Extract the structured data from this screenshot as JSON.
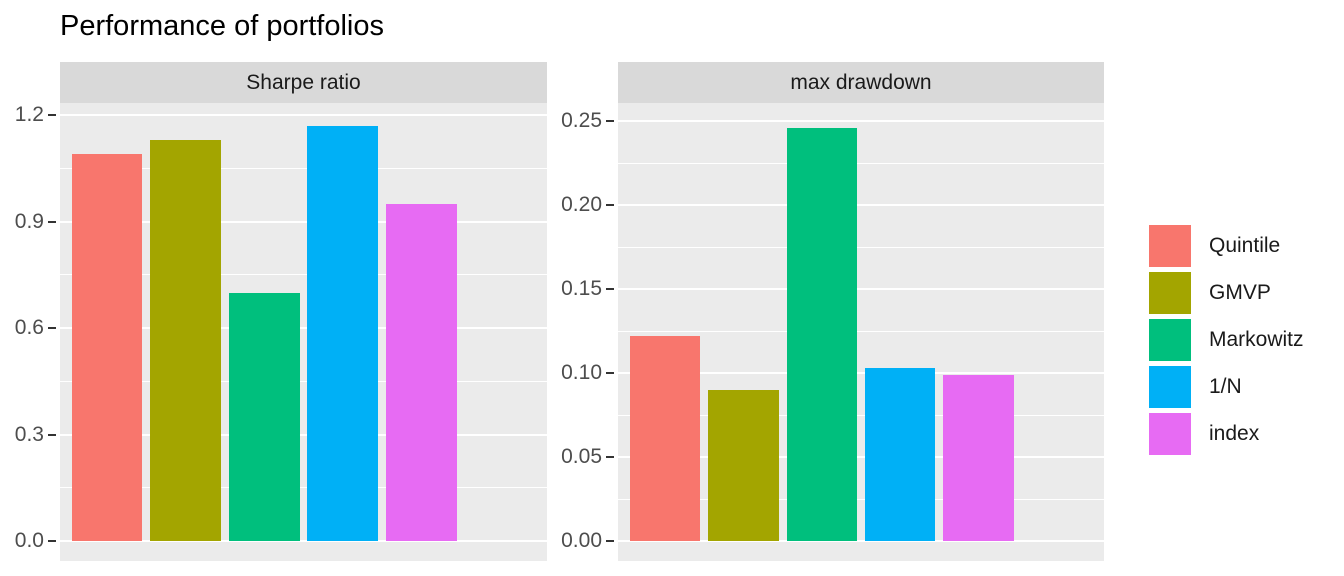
{
  "title": "Performance of portfolios",
  "chart_data": {
    "type": "bar",
    "title": "Performance of portfolios",
    "categories": [
      "Quintile",
      "GMVP",
      "Markowitz",
      "1/N",
      "index"
    ],
    "palette": [
      "#F8766D",
      "#A3A500",
      "#00BF7D",
      "#00B0F6",
      "#E76BF3"
    ],
    "facets": [
      {
        "label": "Sharpe ratio",
        "values": [
          1.09,
          1.13,
          0.7,
          1.17,
          0.95
        ],
        "yticks": [
          0.0,
          0.3,
          0.6,
          0.9,
          1.2
        ],
        "ytick_labels": [
          "0.0",
          "0.3",
          "0.6",
          "0.9",
          "1.2"
        ],
        "ylim": [
          -0.0563,
          1.2338
        ]
      },
      {
        "label": "max drawdown",
        "values": [
          0.122,
          0.09,
          0.246,
          0.103,
          0.099
        ],
        "yticks": [
          0.0,
          0.05,
          0.1,
          0.15,
          0.2,
          0.25
        ],
        "ytick_labels": [
          "0.00",
          "0.05",
          "0.10",
          "0.15",
          "0.20",
          "0.25"
        ],
        "ylim": [
          -0.0119,
          0.261
        ]
      }
    ],
    "legend": {
      "position": "right",
      "items": [
        "Quintile",
        "GMVP",
        "Markowitz",
        "1/N",
        "index"
      ]
    },
    "grid": true,
    "bar_rel_width": 0.9,
    "colors": {
      "panel_bg": "#EBEBEB",
      "strip_bg": "#D9D9D9",
      "grid": "#FFFFFF",
      "tick_mark": "#333333",
      "tick_label": "#4D4D4D",
      "strip_text": "#1A1A1A",
      "title_text": "#000000",
      "page_bg": "#FFFFFF"
    }
  }
}
